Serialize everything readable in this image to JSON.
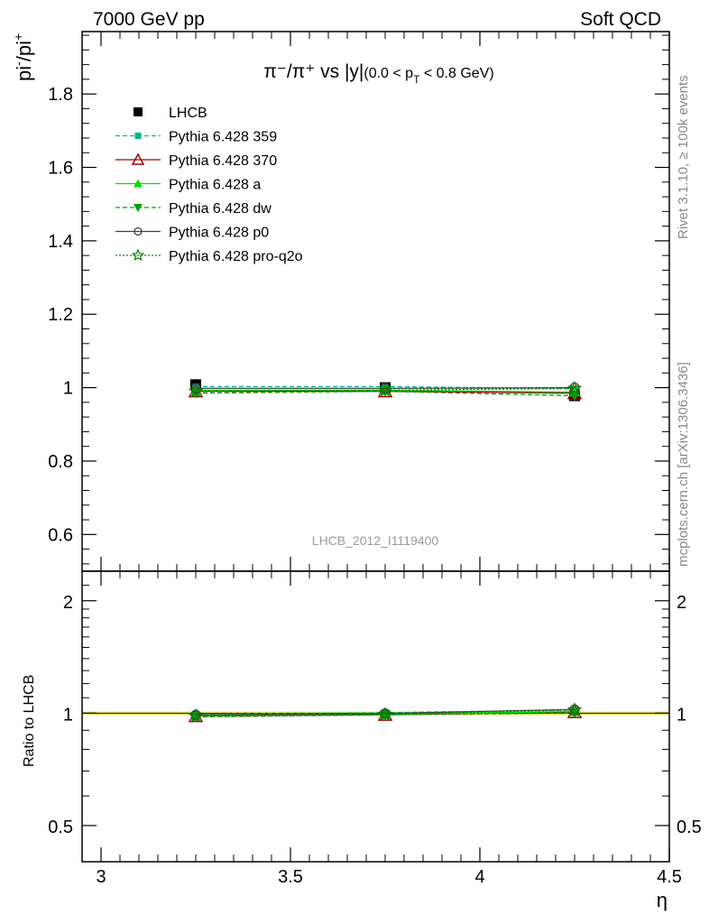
{
  "header": {
    "left": "7000 GeV pp",
    "right": "Soft QCD"
  },
  "side_labels": {
    "rivet": "Rivet 3.1.10, ≥ 100k events",
    "source": "mcplots.cern.ch [arXiv:1306.3436]"
  },
  "chart_data": [
    {
      "type": "line",
      "panel": "main",
      "title": "π⁻/π⁺ vs |y|(0.0 < pT < 0.8 GeV)",
      "title_parts": {
        "main": "π⁻/π⁺ vs |y|",
        "cut_open": "(0.0 < p",
        "cut_sub": "T",
        "cut_close": " < 0.8 GeV)"
      },
      "ylabel": "pi⁻/pi⁺",
      "ylabel_parts": {
        "base1": "pi",
        "sup1": "-",
        "base2": "/pi",
        "sup2": "+"
      },
      "watermark": "LHCB_2012_I1119400",
      "xlim": [
        2.95,
        4.5
      ],
      "ylim": [
        0.5,
        1.97
      ],
      "yticks": [
        "0.6",
        "0.8",
        "1",
        "1.2",
        "1.4",
        "1.6",
        "1.8"
      ],
      "x": [
        3.25,
        3.75,
        4.25
      ],
      "series": [
        {
          "name": "LHCB",
          "values": [
            1.008,
            1.0,
            0.978
          ],
          "color": "#000000",
          "marker": "square",
          "dash": "none"
        },
        {
          "name": "Pythia 6.428 359",
          "values": [
            1.003,
            1.003,
            0.997
          ],
          "color": "#00b888",
          "marker": "small-square",
          "dash": "5,3"
        },
        {
          "name": "Pythia 6.428 370",
          "values": [
            0.99,
            0.99,
            0.985
          ],
          "color": "#a00000",
          "marker": "triangle-open",
          "dash": "none"
        },
        {
          "name": "Pythia 6.428 a",
          "values": [
            0.993,
            0.993,
            0.988
          ],
          "color": "#00e000",
          "marker": "triangle",
          "dash": "none"
        },
        {
          "name": "Pythia 6.428 dw",
          "values": [
            0.985,
            0.99,
            0.978
          ],
          "color": "#00a000",
          "marker": "triangle-down",
          "dash": "5,3"
        },
        {
          "name": "Pythia 6.428 p0",
          "values": [
            0.998,
            0.998,
            1.0
          ],
          "color": "#404040",
          "marker": "circle-open",
          "dash": "none"
        },
        {
          "name": "Pythia 6.428 pro-q2o",
          "values": [
            0.99,
            0.993,
            0.998
          ],
          "color": "#008000",
          "marker": "star",
          "dash": "2,2"
        }
      ]
    },
    {
      "type": "line",
      "panel": "ratio",
      "ylabel": "Ratio to LHCB",
      "xlabel": "η",
      "xlim": [
        2.95,
        4.5
      ],
      "ylim": [
        0.4,
        2.4
      ],
      "scale": "log",
      "yticks": [
        "0.5",
        "1",
        "2"
      ],
      "xticks": [
        "3",
        "3.5",
        "4",
        "4.5"
      ],
      "x": [
        3.25,
        3.75,
        4.25
      ],
      "series": [
        {
          "name": "Pythia 6.428 359",
          "values": [
            0.995,
            1.003,
            1.02
          ]
        },
        {
          "name": "Pythia 6.428 370",
          "values": [
            0.982,
            0.99,
            1.007
          ]
        },
        {
          "name": "Pythia 6.428 a",
          "values": [
            0.985,
            0.993,
            1.01
          ]
        },
        {
          "name": "Pythia 6.428 dw",
          "values": [
            0.977,
            0.99,
            1.0
          ]
        },
        {
          "name": "Pythia 6.428 p0",
          "values": [
            0.99,
            0.998,
            1.023
          ]
        },
        {
          "name": "Pythia 6.428 pro-q2o",
          "values": [
            0.982,
            0.993,
            1.02
          ]
        }
      ]
    }
  ]
}
